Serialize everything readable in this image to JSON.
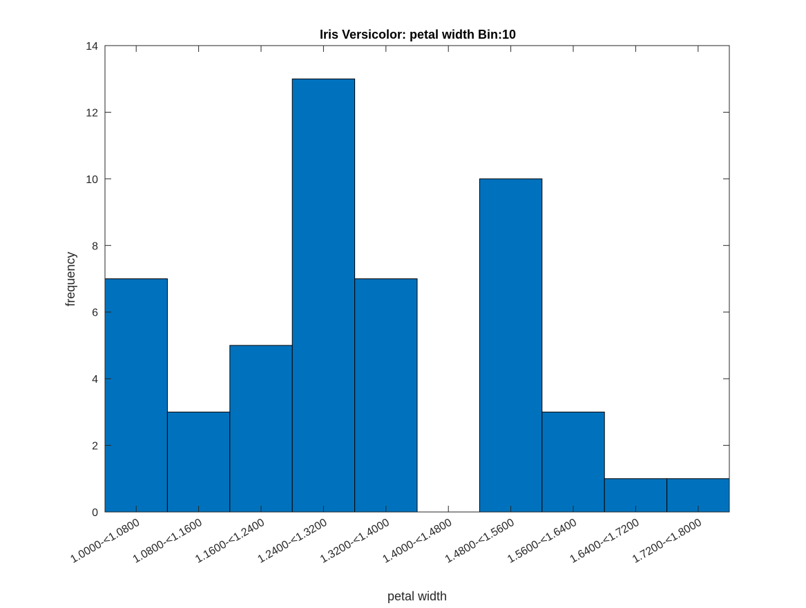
{
  "chart_data": {
    "type": "bar",
    "title": "Iris Versicolor: petal width Bin:10",
    "xlabel": "petal width",
    "ylabel": "frequency",
    "categories": [
      "1.0000-<1.0800",
      "1.0800-<1.1600",
      "1.1600-<1.2400",
      "1.2400-<1.3200",
      "1.3200-<1.4000",
      "1.4000-<1.4800",
      "1.4800-<1.5600",
      "1.5600-<1.6400",
      "1.6400-<1.7200",
      "1.7200-<1.8000"
    ],
    "values": [
      7,
      3,
      5,
      13,
      7,
      0,
      10,
      3,
      1,
      1
    ],
    "ylim": [
      0,
      14
    ],
    "yticks": [
      0,
      2,
      4,
      6,
      8,
      10,
      12,
      14
    ],
    "grid": false,
    "legend": "none",
    "colors": {
      "bar_fill": "#0072BD",
      "bar_edge": "#000000",
      "axis": "#262626"
    }
  }
}
